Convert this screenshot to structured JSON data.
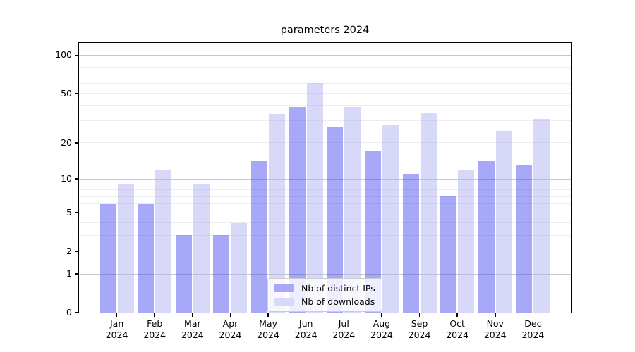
{
  "title": "parameters 2024",
  "chart_data": {
    "type": "bar",
    "title": "parameters 2024",
    "categories": [
      {
        "month": "Jan",
        "year": "2024"
      },
      {
        "month": "Feb",
        "year": "2024"
      },
      {
        "month": "Mar",
        "year": "2024"
      },
      {
        "month": "Apr",
        "year": "2024"
      },
      {
        "month": "May",
        "year": "2024"
      },
      {
        "month": "Jun",
        "year": "2024"
      },
      {
        "month": "Jul",
        "year": "2024"
      },
      {
        "month": "Aug",
        "year": "2024"
      },
      {
        "month": "Sep",
        "year": "2024"
      },
      {
        "month": "Oct",
        "year": "2024"
      },
      {
        "month": "Nov",
        "year": "2024"
      },
      {
        "month": "Dec",
        "year": "2024"
      }
    ],
    "series": [
      {
        "name": "Nb of distinct IPs",
        "color": "#a8a8f8",
        "values": [
          6,
          6,
          3,
          3,
          14,
          39,
          27,
          17,
          11,
          7,
          14,
          13
        ]
      },
      {
        "name": "Nb of downloads",
        "color": "#d8d8f8",
        "values": [
          9,
          12,
          9,
          4,
          34,
          60,
          39,
          28,
          35,
          12,
          25,
          31
        ]
      }
    ],
    "xlabel": "",
    "ylabel": "",
    "yscale": "log1p",
    "ylim": [
      0,
      125
    ],
    "yticks": [
      0,
      1,
      2,
      5,
      10,
      20,
      50,
      100
    ],
    "major_gridlines": [
      1,
      10,
      100
    ],
    "minor_gridlines": [
      2,
      3,
      4,
      6,
      7,
      8,
      9,
      20,
      30,
      40,
      50,
      60,
      70,
      80,
      90
    ],
    "grid": true,
    "legend_position": "lower center"
  },
  "colors": {
    "major_grid": "#c8c8c8",
    "minor_grid": "#ededed",
    "axis": "#000000",
    "legend_border": "#cccccc"
  }
}
